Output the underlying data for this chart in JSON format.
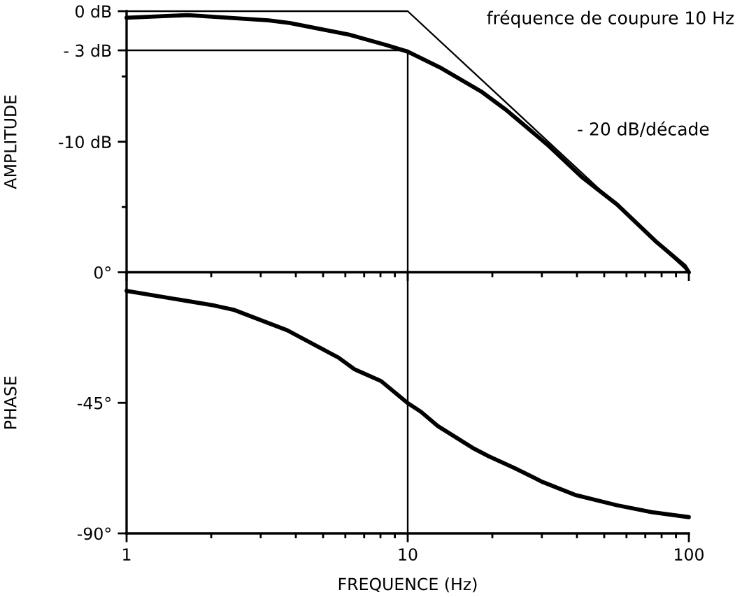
{
  "chart_data": [
    {
      "type": "line",
      "ylabel": "AMPLITUDE",
      "annotations": [
        "fréquence de coupure 10 Hz",
        "- 20 dB/décade"
      ],
      "log": "x",
      "xlim": [
        1,
        100
      ],
      "xticks": [
        1,
        {
          "value": 2,
          "label": null
        },
        {
          "value": 3,
          "label": null
        },
        {
          "value": 4,
          "label": null
        },
        {
          "value": 5,
          "label": null
        },
        {
          "value": 6,
          "label": null
        },
        {
          "value": 7,
          "label": null
        },
        {
          "value": 8,
          "label": null
        },
        {
          "value": 9,
          "label": null
        },
        10,
        {
          "value": 20,
          "label": null
        },
        {
          "value": 30,
          "label": null
        },
        {
          "value": 40,
          "label": null
        },
        {
          "value": 50,
          "label": null
        },
        {
          "value": 60,
          "label": null
        },
        {
          "value": 70,
          "label": null
        },
        {
          "value": 80,
          "label": null
        },
        {
          "value": 90,
          "label": null
        },
        100
      ],
      "ylim": [
        -20,
        0
      ],
      "yticks": [
        {
          "value": 0,
          "label": "0 dB"
        },
        {
          "value": -3,
          "label": "- 3 dB"
        },
        {
          "value": -5,
          "label": null
        },
        {
          "value": -10,
          "label": "-10 dB"
        },
        {
          "value": -15,
          "label": null
        }
      ],
      "tick_labels": "y",
      "series": [
        {
          "color": "#000000",
          "x": [
            1,
            1.65,
            3.2,
            3.8,
            6.2,
            8.4,
            10,
            13,
            18.4,
            22.2,
            31.3,
            41.6,
            55.5,
            76.9,
            96.6,
            100
          ],
          "values": [
            -0.5,
            -0.3,
            -0.7,
            -0.9,
            -1.8,
            -2.6,
            -3.1,
            -4.3,
            -6.2,
            -7.5,
            -10.2,
            -12.7,
            -14.8,
            -17.7,
            -19.5,
            -20
          ]
        },
        {
          "color": "#000000",
          "x": [
            1,
            10,
            100
          ],
          "values": [
            0,
            0,
            -20
          ]
        },
        {
          "color": "#000000",
          "x": [
            1,
            10,
            10
          ],
          "values": [
            -3,
            -3,
            -20
          ]
        }
      ]
    },
    {
      "type": "line",
      "ylabel": "PHASE",
      "xlabel": "FREQUENCE (Hz)",
      "log": "x",
      "xlim": [
        1,
        100
      ],
      "xticks": [
        1,
        {
          "value": 2,
          "label": null
        },
        {
          "value": 3,
          "label": null
        },
        {
          "value": 4,
          "label": null
        },
        {
          "value": 5,
          "label": null
        },
        {
          "value": 6,
          "label": null
        },
        {
          "value": 7,
          "label": null
        },
        {
          "value": 8,
          "label": null
        },
        {
          "value": 9,
          "label": null
        },
        10,
        {
          "value": 20,
          "label": null
        },
        {
          "value": 30,
          "label": null
        },
        {
          "value": 40,
          "label": null
        },
        {
          "value": 50,
          "label": null
        },
        {
          "value": 60,
          "label": null
        },
        {
          "value": 70,
          "label": null
        },
        {
          "value": 80,
          "label": null
        },
        {
          "value": 90,
          "label": null
        },
        100
      ],
      "ylim": [
        -90,
        0
      ],
      "yticks": [
        {
          "value": 0,
          "label": "0°"
        },
        {
          "value": -45,
          "label": "-45°"
        },
        {
          "value": -90,
          "label": "-90°"
        }
      ],
      "ref_lines": [
        {
          "axis": "x",
          "value": 10,
          "color": "#000000"
        }
      ],
      "series": [
        {
          "color": "#000000",
          "x": [
            1,
            2.06,
            2.4,
            3.73,
            5.67,
            6.46,
            8.04,
            9.94,
            11.15,
            12.8,
            17,
            19.4,
            24,
            30.2,
            39.3,
            55.5,
            73.8,
            100
          ],
          "values": [
            -6.4,
            -11.5,
            -12.9,
            -20,
            -29.4,
            -33.4,
            -37.5,
            -44.9,
            -48.1,
            -53,
            -60.5,
            -63.4,
            -67.5,
            -72.3,
            -76.7,
            -80.3,
            -82.7,
            -84.4
          ]
        }
      ]
    }
  ]
}
